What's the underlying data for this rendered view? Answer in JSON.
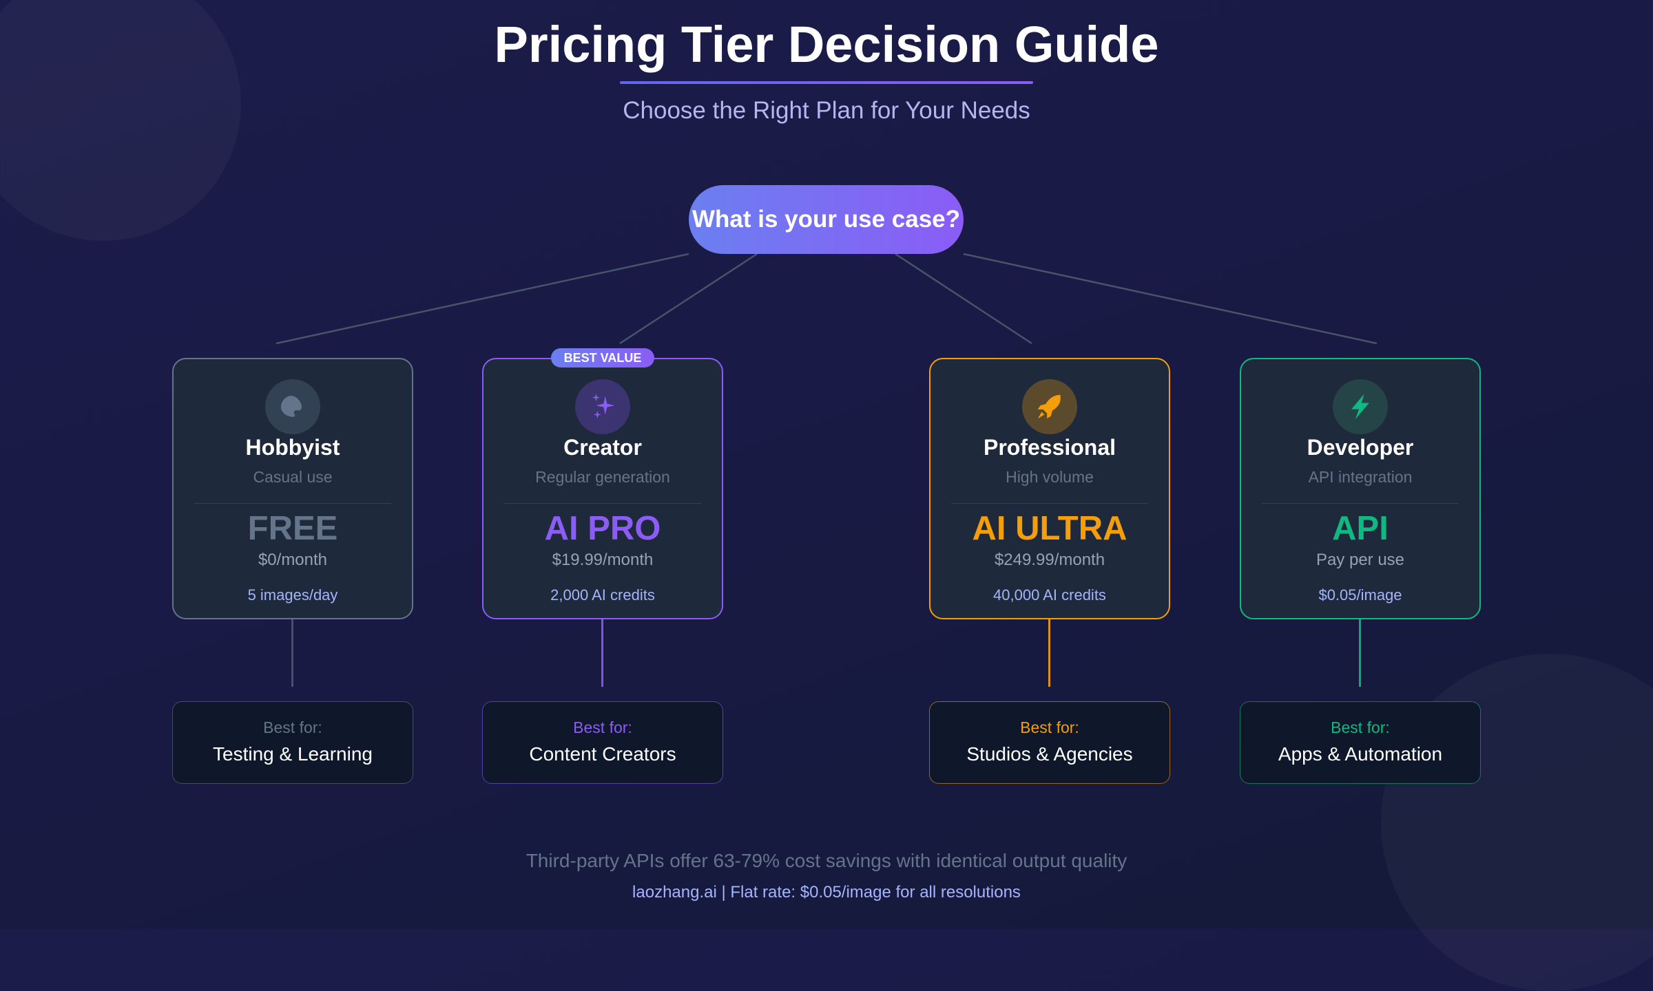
{
  "header": {
    "title": "Pricing Tier Decision Guide",
    "subtitle": "Choose the Right Plan for Your Needs"
  },
  "root_question": "What is your use case?",
  "tiers": [
    {
      "name": "Hobbyist",
      "subtitle": "Casual use",
      "plan": "FREE",
      "price": "$0/month",
      "detail": "5 images/day",
      "icon": "palette-icon",
      "color": "#64748b",
      "icon_bg": "#334155",
      "best_for_label": "Best for:",
      "best_for": "Testing & Learning",
      "badge": ""
    },
    {
      "name": "Creator",
      "subtitle": "Regular generation",
      "plan": "AI PRO",
      "price": "$19.99/month",
      "detail": "2,000 AI credits",
      "icon": "sparkles-icon",
      "color": "#8b5cf6",
      "icon_bg": "#3b3470",
      "best_for_label": "Best for:",
      "best_for": "Content Creators",
      "badge": "BEST VALUE"
    },
    {
      "name": "Professional",
      "subtitle": "High volume",
      "plan": "AI ULTRA",
      "price": "$249.99/month",
      "detail": "40,000 AI credits",
      "icon": "rocket-icon",
      "color": "#f59e0b",
      "icon_bg": "#5c4a2c",
      "best_for_label": "Best for:",
      "best_for": "Studios & Agencies",
      "badge": ""
    },
    {
      "name": "Developer",
      "subtitle": "API integration",
      "plan": "API",
      "price": "Pay per use",
      "detail": "$0.05/image",
      "icon": "lightning-icon",
      "color": "#10b981",
      "icon_bg": "#254448",
      "best_for_label": "Best for:",
      "best_for": "Apps & Automation",
      "badge": ""
    }
  ],
  "footer": {
    "note": "Third-party APIs offer 63-79% cost savings with identical output quality",
    "source": "laozhang.ai | Flat rate: $0.05/image for all resolutions"
  }
}
